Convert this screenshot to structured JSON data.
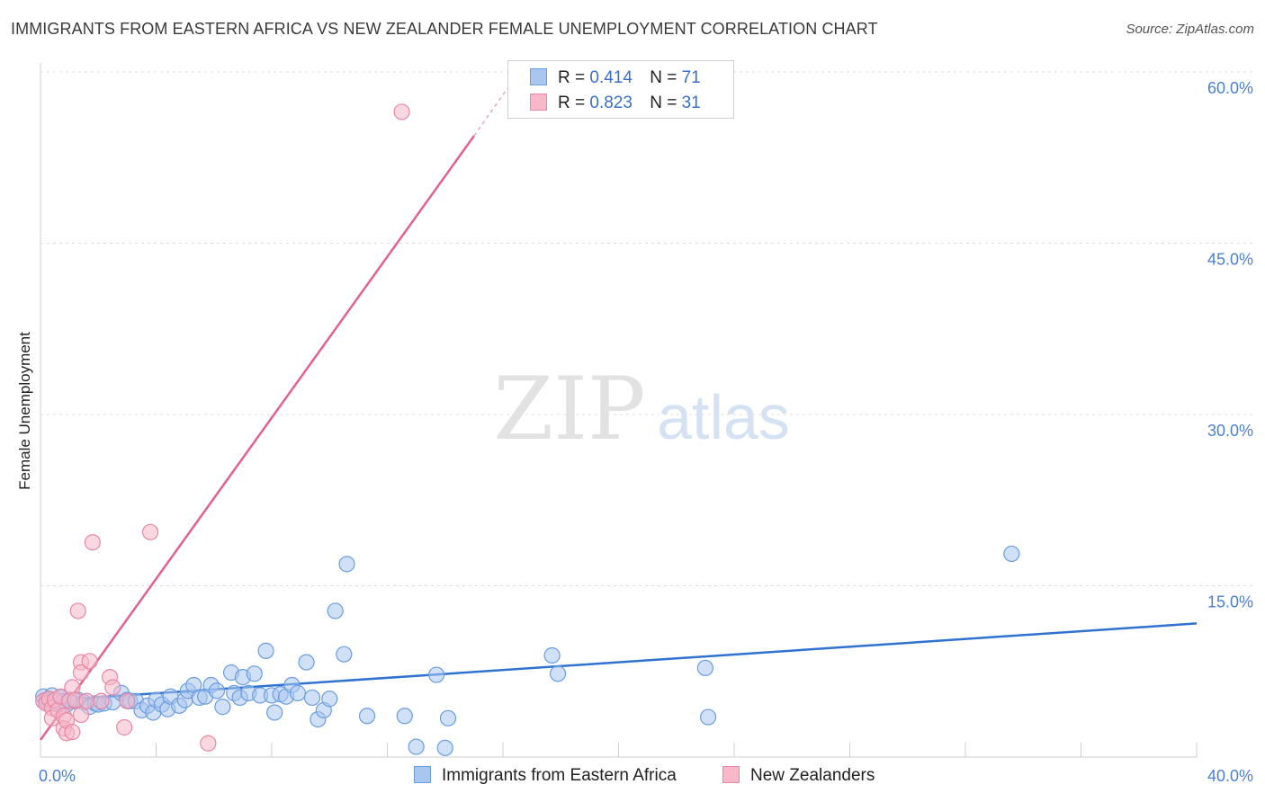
{
  "header": {
    "title": "IMMIGRANTS FROM EASTERN AFRICA VS NEW ZEALANDER FEMALE UNEMPLOYMENT CORRELATION CHART",
    "source": "Source: ZipAtlas.com"
  },
  "watermark": {
    "zip": "ZIP",
    "atlas": "atlas"
  },
  "legend_top": [
    {
      "r_label": "R =",
      "r_value": "0.414",
      "n_label": "N =",
      "n_value": "71",
      "color": "#a9c6ef"
    },
    {
      "r_label": "R =",
      "r_value": "0.823",
      "n_label": "N =",
      "n_value": "31",
      "color": "#f7b8c9"
    }
  ],
  "colors": {
    "blue_fill": "#a9c6ef",
    "blue_stroke": "#6a9ee0",
    "blue_line": "#2f72d0",
    "pink_fill": "#f7b8c9",
    "pink_stroke": "#e888a6",
    "pink_line": "#e2628c",
    "grid": "#dddddd",
    "tick_text": "#4a7fd4"
  },
  "chart_data": {
    "type": "scatter",
    "title": "IMMIGRANTS FROM EASTERN AFRICA VS NEW ZEALANDER FEMALE UNEMPLOYMENT CORRELATION CHART",
    "xlabel": "",
    "ylabel": "Female Unemployment",
    "xlim": [
      0,
      40
    ],
    "ylim": [
      0,
      60
    ],
    "x_tick_labels": [
      "0.0%",
      "40.0%"
    ],
    "y_ticks": [
      15,
      30,
      45,
      60
    ],
    "y_tick_labels": [
      "15.0%",
      "30.0%",
      "45.0%",
      "60.0%"
    ],
    "grid": true,
    "series": [
      {
        "name": "Immigrants from Eastern Africa",
        "points": [
          [
            0.1,
            5.3
          ],
          [
            0.2,
            5.0
          ],
          [
            0.3,
            4.7
          ],
          [
            0.4,
            5.4
          ],
          [
            0.5,
            4.9
          ],
          [
            0.6,
            4.8
          ],
          [
            0.7,
            5.2
          ],
          [
            0.8,
            4.9
          ],
          [
            0.9,
            4.6
          ],
          [
            1.0,
            5.0
          ],
          [
            1.2,
            4.9
          ],
          [
            1.3,
            5.0
          ],
          [
            1.5,
            4.8
          ],
          [
            1.7,
            4.4
          ],
          [
            1.9,
            4.7
          ],
          [
            2.0,
            4.6
          ],
          [
            2.2,
            4.7
          ],
          [
            2.5,
            4.8
          ],
          [
            2.8,
            5.6
          ],
          [
            3.0,
            5.0
          ],
          [
            3.1,
            4.9
          ],
          [
            3.3,
            4.9
          ],
          [
            3.5,
            4.1
          ],
          [
            3.7,
            4.5
          ],
          [
            3.9,
            3.9
          ],
          [
            4.0,
            5.0
          ],
          [
            4.2,
            4.6
          ],
          [
            4.4,
            4.2
          ],
          [
            4.5,
            5.3
          ],
          [
            4.8,
            4.5
          ],
          [
            5.0,
            5.0
          ],
          [
            5.1,
            5.8
          ],
          [
            5.3,
            6.3
          ],
          [
            5.5,
            5.2
          ],
          [
            5.7,
            5.3
          ],
          [
            5.9,
            6.3
          ],
          [
            6.1,
            5.8
          ],
          [
            6.3,
            4.4
          ],
          [
            6.6,
            7.4
          ],
          [
            6.7,
            5.6
          ],
          [
            6.9,
            5.2
          ],
          [
            7.0,
            7.0
          ],
          [
            7.2,
            5.6
          ],
          [
            7.4,
            7.3
          ],
          [
            7.6,
            5.4
          ],
          [
            7.8,
            9.3
          ],
          [
            8.0,
            5.4
          ],
          [
            8.1,
            3.9
          ],
          [
            8.3,
            5.5
          ],
          [
            8.5,
            5.3
          ],
          [
            8.7,
            6.3
          ],
          [
            8.9,
            5.6
          ],
          [
            9.2,
            8.3
          ],
          [
            9.4,
            5.2
          ],
          [
            9.6,
            3.3
          ],
          [
            9.8,
            4.1
          ],
          [
            10.0,
            5.1
          ],
          [
            10.2,
            12.8
          ],
          [
            10.5,
            9.0
          ],
          [
            10.6,
            16.9
          ],
          [
            11.3,
            3.6
          ],
          [
            12.6,
            3.6
          ],
          [
            13.0,
            0.9
          ],
          [
            13.7,
            7.2
          ],
          [
            14.0,
            0.8
          ],
          [
            14.1,
            3.4
          ],
          [
            17.7,
            8.9
          ],
          [
            17.9,
            7.3
          ],
          [
            23.0,
            7.8
          ],
          [
            23.1,
            3.5
          ],
          [
            33.6,
            17.8
          ]
        ],
        "trend": [
          [
            0,
            4.9
          ],
          [
            40,
            11.7
          ]
        ]
      },
      {
        "name": "New Zealanders",
        "points": [
          [
            0.1,
            4.9
          ],
          [
            0.2,
            4.7
          ],
          [
            0.3,
            5.1
          ],
          [
            0.4,
            4.3
          ],
          [
            0.4,
            3.4
          ],
          [
            0.5,
            5.0
          ],
          [
            0.6,
            4.1
          ],
          [
            0.7,
            5.3
          ],
          [
            0.8,
            3.6
          ],
          [
            0.8,
            2.5
          ],
          [
            0.9,
            2.1
          ],
          [
            0.9,
            3.2
          ],
          [
            1.0,
            4.9
          ],
          [
            1.1,
            2.2
          ],
          [
            1.1,
            6.1
          ],
          [
            1.2,
            5.0
          ],
          [
            1.3,
            12.8
          ],
          [
            1.4,
            8.3
          ],
          [
            1.4,
            7.4
          ],
          [
            1.4,
            3.7
          ],
          [
            1.6,
            4.9
          ],
          [
            1.7,
            8.4
          ],
          [
            1.8,
            18.8
          ],
          [
            2.1,
            4.9
          ],
          [
            2.4,
            7.0
          ],
          [
            2.5,
            6.1
          ],
          [
            2.9,
            2.6
          ],
          [
            3.0,
            4.9
          ],
          [
            3.8,
            19.7
          ],
          [
            5.8,
            1.2
          ],
          [
            12.5,
            56.5
          ]
        ],
        "trend": [
          [
            0,
            1.5
          ],
          [
            15.0,
            54.4
          ]
        ],
        "trend_dashed_extension": [
          [
            15.0,
            54.4
          ],
          [
            16.5,
            59.8
          ]
        ]
      }
    ]
  },
  "legend_bottom": [
    {
      "label": "Immigrants from Eastern Africa"
    },
    {
      "label": "New Zealanders"
    }
  ]
}
